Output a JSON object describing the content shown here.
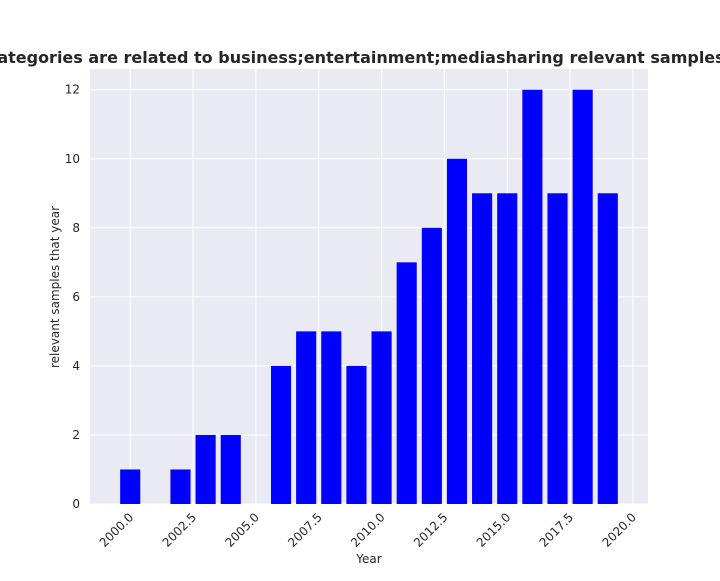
{
  "chart_data": {
    "type": "bar",
    "title": "Number of papers whose categories are related to business;entertainment;mediasharing relevant samples that year in privacy policies",
    "xlabel": "Year",
    "ylabel": "relevant samples that year",
    "x": [
      2000,
      2002,
      2003,
      2004,
      2006,
      2007,
      2008,
      2009,
      2010,
      2011,
      2012,
      2013,
      2014,
      2015,
      2016,
      2017,
      2018,
      2019
    ],
    "values": [
      1,
      1,
      2,
      2,
      4,
      5,
      5,
      4,
      5,
      7,
      8,
      10,
      9,
      9,
      12,
      9,
      12,
      9
    ],
    "xlim": [
      1998.4,
      2020.6
    ],
    "ylim": [
      0,
      12.6
    ],
    "xticks": [
      2000.0,
      2002.5,
      2005.0,
      2007.5,
      2010.0,
      2012.5,
      2015.0,
      2017.5,
      2020.0
    ],
    "yticks": [
      0,
      2,
      4,
      6,
      8,
      10,
      12
    ],
    "bar_color": "#0000ff",
    "grid": true,
    "background": "#eaeaf2"
  }
}
